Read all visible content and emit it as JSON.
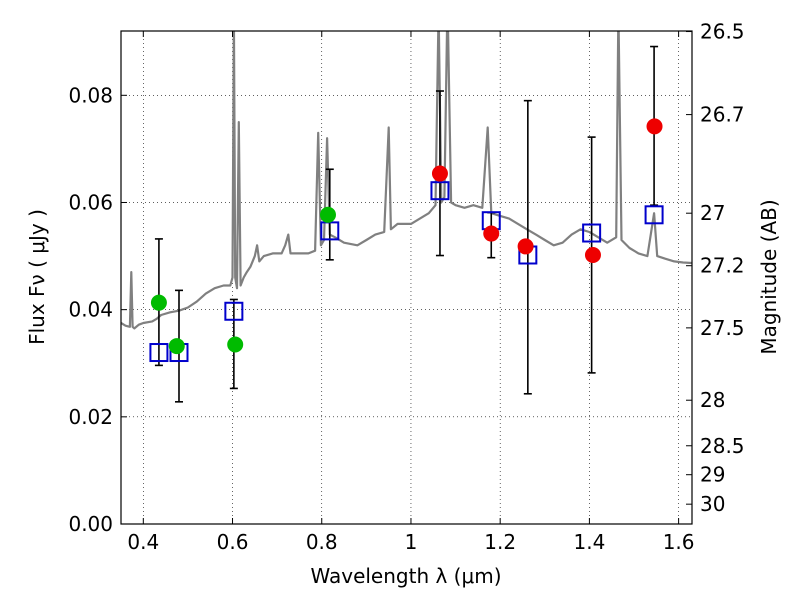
{
  "chart_data": {
    "type": "scatter",
    "xlabel": "Wavelength  λ (μm)",
    "ylabel": "Flux  Fν  ( μJy )",
    "y2label": "Magnitude (AB)",
    "xlim": [
      0.35,
      1.63
    ],
    "ylim": [
      0.0,
      0.092
    ],
    "grid": true,
    "x_ticks": [
      0.4,
      0.6,
      0.8,
      1.0,
      1.2,
      1.4,
      1.6
    ],
    "x_tick_labels": [
      "0.4",
      "0.6",
      "0.8",
      "1",
      "1.2",
      "1.4",
      "1.6"
    ],
    "y_ticks": [
      0.0,
      0.02,
      0.04,
      0.06,
      0.08
    ],
    "y_tick_labels": [
      "0.00",
      "0.02",
      "0.04",
      "0.06",
      "0.08"
    ],
    "y2_ticks": [
      {
        "label": "26.5",
        "flux": 0.0919
      },
      {
        "label": "26.7",
        "flux": 0.0764
      },
      {
        "label": "27",
        "flux": 0.058
      },
      {
        "label": "27.2",
        "flux": 0.0482
      },
      {
        "label": "27.5",
        "flux": 0.0366
      },
      {
        "label": "28",
        "flux": 0.0231
      },
      {
        "label": "28.5",
        "flux": 0.0146
      },
      {
        "label": "29",
        "flux": 0.0092
      },
      {
        "label": "30",
        "flux": 0.0037
      }
    ],
    "colors": {
      "spectrum": "#808080",
      "green_points": "#00bb00",
      "red_points": "#ee0000",
      "model_squares": "#0000cc",
      "error_bars": "#000000"
    },
    "spectrum": [
      [
        0.35,
        0.0375
      ],
      [
        0.36,
        0.037
      ],
      [
        0.37,
        0.0368
      ],
      [
        0.373,
        0.047
      ],
      [
        0.376,
        0.0368
      ],
      [
        0.38,
        0.0365
      ],
      [
        0.39,
        0.0372
      ],
      [
        0.4,
        0.0375
      ],
      [
        0.42,
        0.0378
      ],
      [
        0.43,
        0.0383
      ],
      [
        0.44,
        0.039
      ],
      [
        0.46,
        0.0395
      ],
      [
        0.48,
        0.0398
      ],
      [
        0.5,
        0.0404
      ],
      [
        0.52,
        0.0415
      ],
      [
        0.54,
        0.043
      ],
      [
        0.56,
        0.044
      ],
      [
        0.58,
        0.0445
      ],
      [
        0.595,
        0.0445
      ],
      [
        0.6,
        0.046
      ],
      [
        0.603,
        0.095
      ],
      [
        0.606,
        0.046
      ],
      [
        0.61,
        0.044
      ],
      [
        0.614,
        0.075
      ],
      [
        0.618,
        0.0445
      ],
      [
        0.625,
        0.046
      ],
      [
        0.632,
        0.047
      ],
      [
        0.64,
        0.048
      ],
      [
        0.65,
        0.05
      ],
      [
        0.655,
        0.052
      ],
      [
        0.66,
        0.049
      ],
      [
        0.67,
        0.05
      ],
      [
        0.69,
        0.0505
      ],
      [
        0.71,
        0.0505
      ],
      [
        0.718,
        0.052
      ],
      [
        0.725,
        0.054
      ],
      [
        0.73,
        0.0505
      ],
      [
        0.75,
        0.0505
      ],
      [
        0.77,
        0.0505
      ],
      [
        0.785,
        0.051
      ],
      [
        0.792,
        0.073
      ],
      [
        0.798,
        0.052
      ],
      [
        0.805,
        0.053
      ],
      [
        0.812,
        0.072
      ],
      [
        0.818,
        0.054
      ],
      [
        0.83,
        0.0535
      ],
      [
        0.85,
        0.0525
      ],
      [
        0.88,
        0.052
      ],
      [
        0.9,
        0.053
      ],
      [
        0.92,
        0.054
      ],
      [
        0.94,
        0.0545
      ],
      [
        0.95,
        0.074
      ],
      [
        0.955,
        0.055
      ],
      [
        0.97,
        0.056
      ],
      [
        1.0,
        0.056
      ],
      [
        1.02,
        0.057
      ],
      [
        1.04,
        0.058
      ],
      [
        1.055,
        0.0595
      ],
      [
        1.062,
        0.096
      ],
      [
        1.068,
        0.06
      ],
      [
        1.075,
        0.061
      ],
      [
        1.082,
        0.098
      ],
      [
        1.09,
        0.06
      ],
      [
        1.1,
        0.0595
      ],
      [
        1.12,
        0.059
      ],
      [
        1.14,
        0.0595
      ],
      [
        1.16,
        0.059
      ],
      [
        1.172,
        0.074
      ],
      [
        1.18,
        0.058
      ],
      [
        1.2,
        0.0575
      ],
      [
        1.22,
        0.057
      ],
      [
        1.24,
        0.056
      ],
      [
        1.26,
        0.055
      ],
      [
        1.28,
        0.054
      ],
      [
        1.3,
        0.053
      ],
      [
        1.32,
        0.052
      ],
      [
        1.34,
        0.0525
      ],
      [
        1.36,
        0.054
      ],
      [
        1.38,
        0.055
      ],
      [
        1.4,
        0.0545
      ],
      [
        1.42,
        0.0535
      ],
      [
        1.44,
        0.0525
      ],
      [
        1.46,
        0.0535
      ],
      [
        1.465,
        0.096
      ],
      [
        1.472,
        0.053
      ],
      [
        1.49,
        0.0515
      ],
      [
        1.51,
        0.0505
      ],
      [
        1.53,
        0.05
      ],
      [
        1.545,
        0.058
      ],
      [
        1.552,
        0.05
      ],
      [
        1.57,
        0.0495
      ],
      [
        1.59,
        0.049
      ],
      [
        1.61,
        0.0488
      ],
      [
        1.63,
        0.0487
      ]
    ],
    "observed_points": [
      {
        "x": 0.435,
        "y": 0.0413,
        "color": "green"
      },
      {
        "x": 0.475,
        "y": 0.0332,
        "color": "green"
      },
      {
        "x": 0.606,
        "y": 0.0335,
        "color": "green"
      },
      {
        "x": 0.814,
        "y": 0.0577,
        "color": "green"
      },
      {
        "x": 1.065,
        "y": 0.0654,
        "color": "red"
      },
      {
        "x": 1.18,
        "y": 0.0542,
        "color": "red"
      },
      {
        "x": 1.257,
        "y": 0.0518,
        "color": "red"
      },
      {
        "x": 1.408,
        "y": 0.0502,
        "color": "red"
      },
      {
        "x": 1.546,
        "y": 0.0742,
        "color": "red"
      }
    ],
    "model_points": [
      {
        "x": 0.435,
        "y": 0.032,
        "err_low": 0.0296,
        "err_high": 0.0532
      },
      {
        "x": 0.48,
        "y": 0.032,
        "err_low": 0.0228,
        "err_high": 0.0436
      },
      {
        "x": 0.603,
        "y": 0.0397,
        "err_low": 0.0253,
        "err_high": 0.0419
      },
      {
        "x": 0.818,
        "y": 0.0547,
        "err_low": 0.0493,
        "err_high": 0.0662
      },
      {
        "x": 1.065,
        "y": 0.0622,
        "err_low": 0.0501,
        "err_high": 0.0808
      },
      {
        "x": 1.18,
        "y": 0.0566,
        "err_low": 0.0497,
        "err_high": 0.0581
      },
      {
        "x": 1.262,
        "y": 0.0502,
        "err_low": 0.0243,
        "err_high": 0.079
      },
      {
        "x": 1.405,
        "y": 0.0543,
        "err_low": 0.0282,
        "err_high": 0.0722
      },
      {
        "x": 1.545,
        "y": 0.0577,
        "err_low": 0.0595,
        "err_high": 0.0891
      }
    ]
  }
}
